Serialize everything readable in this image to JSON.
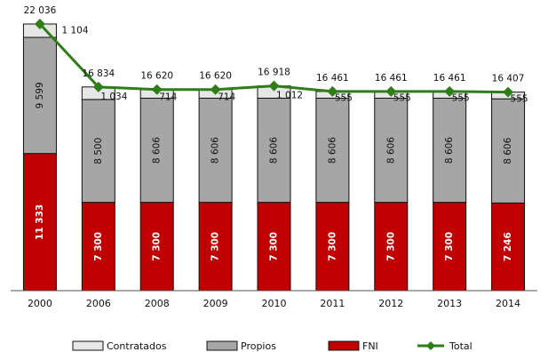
{
  "chart_data": {
    "type": "bar",
    "stacked": true,
    "categories": [
      "2000",
      "2006",
      "2008",
      "2009",
      "2010",
      "2011",
      "2012",
      "2013",
      "2014"
    ],
    "series": [
      {
        "name": "FNI",
        "values": [
          11333,
          7300,
          7300,
          7300,
          7300,
          7300,
          7300,
          7300,
          7246
        ],
        "color": "#c00000",
        "label_color": "#ffffff"
      },
      {
        "name": "Propios",
        "values": [
          9599,
          8500,
          8606,
          8606,
          8606,
          8606,
          8606,
          8606,
          8606
        ],
        "color": "#a6a6a6",
        "label_color": "#111111"
      },
      {
        "name": "Contratados",
        "values": [
          1104,
          1034,
          714,
          714,
          1012,
          555,
          555,
          555,
          555
        ],
        "color": "#e6e6e6"
      }
    ],
    "line": {
      "name": "Total",
      "values": [
        22036,
        16834,
        16620,
        16620,
        16918,
        16461,
        16461,
        16461,
        16407
      ],
      "color": "#2e7d18"
    },
    "labels": {
      "FNI": [
        "11 333",
        "7 300",
        "7 300",
        "7 300",
        "7 300",
        "7 300",
        "7 300",
        "7 300",
        "7 246"
      ],
      "Propios": [
        "9 599",
        "8 500",
        "8 606",
        "8 606",
        "8 606",
        "8 606",
        "8 606",
        "8 606",
        "8 606"
      ],
      "Contratados": [
        "1 104",
        "1 034",
        "714",
        "714",
        "1 012",
        "555",
        "555",
        "555",
        "555"
      ],
      "Total": [
        "22 036",
        "16 834",
        "16 620",
        "16 620",
        "16 918",
        "16 461",
        "16 461",
        "16 461",
        "16 407"
      ]
    },
    "legend": {
      "placement": "bottom",
      "entries": [
        "Contratados",
        "Propios",
        "FNI",
        "Total"
      ]
    },
    "ylim": [
      0,
      23000
    ],
    "y_axis_visible": false,
    "grid": false,
    "title": "",
    "xlabel": "",
    "ylabel": ""
  }
}
